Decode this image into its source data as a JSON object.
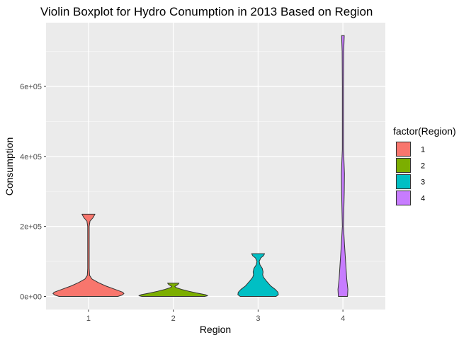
{
  "chart_data": {
    "type": "violin",
    "title": "Violin Boxplot for Hydro Conumption in 2013 Based on Region",
    "xlabel": "Region",
    "ylabel": "Consumption",
    "categories": [
      "1",
      "2",
      "3",
      "4"
    ],
    "y_ticks": [
      {
        "value": 0,
        "label": "0e+00"
      },
      {
        "value": 200000,
        "label": "2e+05"
      },
      {
        "value": 400000,
        "label": "4e+05"
      },
      {
        "value": 600000,
        "label": "6e+05"
      }
    ],
    "ylim": [
      -37500,
      782000
    ],
    "grid": true,
    "legend": {
      "title": "factor(Region)",
      "placement": "right",
      "entries": [
        {
          "label": "1",
          "color": "#F8766D"
        },
        {
          "label": "2",
          "color": "#7CAE00"
        },
        {
          "label": "3",
          "color": "#00BFC4"
        },
        {
          "label": "4",
          "color": "#C77CFF"
        }
      ]
    },
    "series": [
      {
        "category": "1",
        "color": "#F8766D",
        "min": 0,
        "max": 235000,
        "density": [
          [
            0,
            0.77
          ],
          [
            4000,
            0.88
          ],
          [
            8000,
            0.93
          ],
          [
            12000,
            0.9
          ],
          [
            20000,
            0.7
          ],
          [
            30000,
            0.45
          ],
          [
            40000,
            0.25
          ],
          [
            50000,
            0.09
          ],
          [
            60000,
            0.03
          ],
          [
            80000,
            0.02
          ],
          [
            120000,
            0.02
          ],
          [
            160000,
            0.02
          ],
          [
            200000,
            0.02
          ],
          [
            215000,
            0.04
          ],
          [
            225000,
            0.12
          ],
          [
            235000,
            0.17
          ]
        ]
      },
      {
        "category": "2",
        "color": "#7CAE00",
        "min": 0,
        "max": 38000,
        "density": [
          [
            0,
            0.82
          ],
          [
            2000,
            0.9
          ],
          [
            5000,
            0.84
          ],
          [
            10000,
            0.6
          ],
          [
            15000,
            0.4
          ],
          [
            20000,
            0.22
          ],
          [
            25000,
            0.08
          ],
          [
            28000,
            0.04
          ],
          [
            30000,
            0.06
          ],
          [
            34000,
            0.12
          ],
          [
            38000,
            0.15
          ]
        ]
      },
      {
        "category": "3",
        "color": "#00BFC4",
        "min": 0,
        "max": 122000,
        "density": [
          [
            0,
            0.47
          ],
          [
            5000,
            0.53
          ],
          [
            12000,
            0.52
          ],
          [
            20000,
            0.45
          ],
          [
            30000,
            0.33
          ],
          [
            45000,
            0.21
          ],
          [
            55000,
            0.14
          ],
          [
            62000,
            0.12
          ],
          [
            70000,
            0.13
          ],
          [
            80000,
            0.11
          ],
          [
            90000,
            0.05
          ],
          [
            100000,
            0.03
          ],
          [
            110000,
            0.07
          ],
          [
            116000,
            0.14
          ],
          [
            122000,
            0.17
          ]
        ]
      },
      {
        "category": "4",
        "color": "#C77CFF",
        "min": 0,
        "max": 745000,
        "density": [
          [
            0,
            0.12
          ],
          [
            20000,
            0.13
          ],
          [
            50000,
            0.1
          ],
          [
            100000,
            0.07
          ],
          [
            150000,
            0.04
          ],
          [
            200000,
            0.015
          ],
          [
            250000,
            0.025
          ],
          [
            300000,
            0.035
          ],
          [
            350000,
            0.04
          ],
          [
            380000,
            0.03
          ],
          [
            420000,
            0.015
          ],
          [
            500000,
            0.015
          ],
          [
            600000,
            0.015
          ],
          [
            700000,
            0.02
          ],
          [
            730000,
            0.03
          ],
          [
            745000,
            0.035
          ]
        ]
      }
    ]
  }
}
